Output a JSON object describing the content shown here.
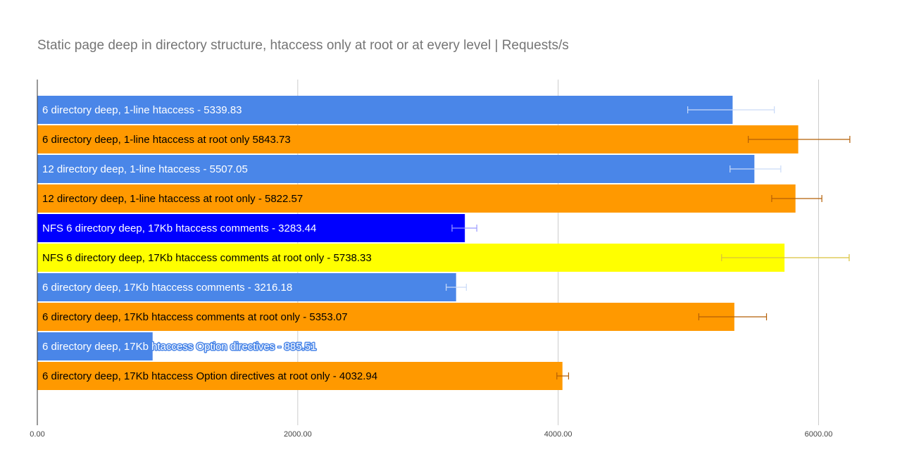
{
  "chart_data": {
    "type": "bar",
    "orientation": "horizontal",
    "title": "Static page deep in directory structure, htaccess only at root or at every level | Requests/s",
    "xlabel": "",
    "ylabel": "",
    "xlim": [
      0,
      6600
    ],
    "x_ticks": [
      "0.00",
      "2000.00",
      "4000.00",
      "6000.00"
    ],
    "grid": true,
    "legend": "none",
    "categories": [
      "6 directory deep, 1-line htaccess - 5339.83",
      "6 directory deep, 1-line htaccess at root only 5843.73",
      "12 directory deep, 1-line htaccess - 5507.05",
      "12 directory deep, 1-line htaccess at root only - 5822.57",
      "NFS 6 directory deep, 17Kb htaccess comments - 3283.44",
      "NFS 6 directory deep, 17Kb htaccess comments at root only - 5738.33",
      "6 directory deep, 17Kb htaccess comments - 3216.18",
      "6 directory deep, 17Kb htaccess comments at root only - 5353.07",
      "6 directory deep, 17Kb htaccess Option directives - 885.51",
      "6 directory deep, 17Kb htaccess Option directives at root only - 4032.94"
    ],
    "values": [
      5339.83,
      5843.73,
      5507.05,
      5822.57,
      3283.44,
      5738.33,
      3216.18,
      5353.07,
      885.51,
      4032.94
    ],
    "error_low": [
      4995,
      5460,
      5320,
      5640,
      3185,
      5255,
      3140,
      5080,
      885.51,
      3990
    ],
    "error_high": [
      5660,
      6240,
      5710,
      6025,
      3375,
      6235,
      3295,
      5600,
      885.51,
      4080
    ],
    "colors": [
      "#4a86e8",
      "#ff9900",
      "#4a86e8",
      "#ff9900",
      "#0000ff",
      "#ffff00",
      "#4a86e8",
      "#ff9900",
      "#4a86e8",
      "#ff9900"
    ],
    "label_colors": [
      "#ffffff",
      "#000000",
      "#ffffff",
      "#000000",
      "#ffffff",
      "#000000",
      "#ffffff",
      "#000000",
      "#ffffff",
      "#000000"
    ],
    "error_colors": [
      "#c9daf8",
      "#b45f06",
      "#c9daf8",
      "#b45f06",
      "#9999ff",
      "#d9c23a",
      "#c9daf8",
      "#b45f06",
      "#c9daf8",
      "#b45f06"
    ]
  }
}
